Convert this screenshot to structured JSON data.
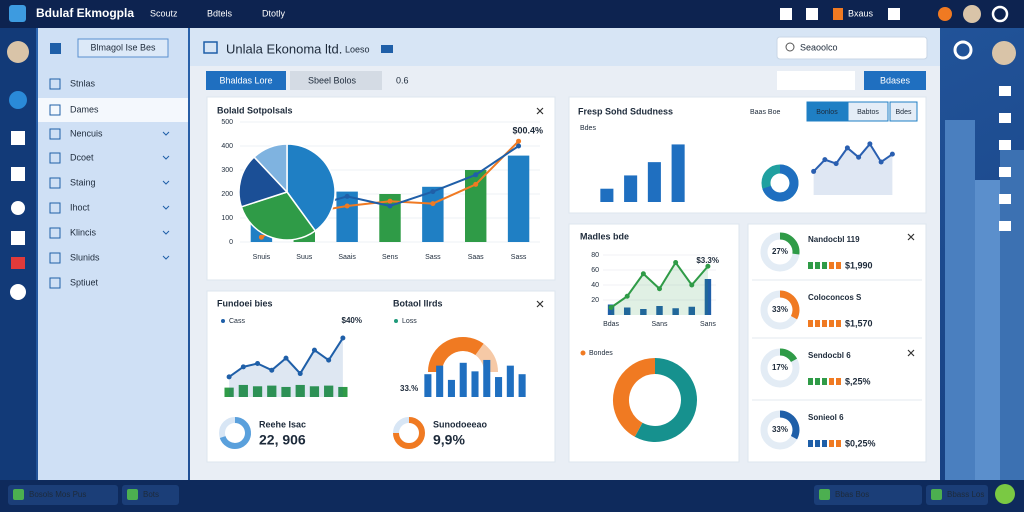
{
  "app": {
    "title": "Bdulaf Ekmogpla",
    "nav": [
      "Scoutz",
      "Bdtels",
      "Dtotly"
    ],
    "status": "Bxaus"
  },
  "sidebar": {
    "button": "Blmagol Ise Bes",
    "items": [
      "Stnlas",
      "Dames",
      "Nencuis",
      "Dcoet",
      "Staing",
      "Ihoct",
      "Klincis",
      "Slunids",
      "Sptiuet"
    ]
  },
  "header": {
    "title": "Unlala Ekonoma ltd.",
    "tag": "Loeso",
    "search": "Seaoolco",
    "primary": "Bhaldas Lore",
    "filter": "Sbeel Bolos",
    "count": "0.6",
    "action": "Bdases"
  },
  "chart_data": [
    {
      "type": "combo",
      "title": "Bolald Sotpolsals",
      "categories": [
        "Snuis",
        "Suus",
        "Saais",
        "Sens",
        "Sass",
        "Saas",
        "Sass"
      ],
      "ylim": [
        0,
        500
      ],
      "yticks": [
        0,
        100,
        200,
        300,
        400,
        500
      ],
      "bar_colors": [
        "#1f7fc4",
        "#2f9b47"
      ],
      "values": [
        140,
        180,
        210,
        200,
        230,
        300,
        360
      ],
      "lines": [
        {
          "color": "#f07a22",
          "values": [
            20,
            120,
            150,
            170,
            160,
            240,
            420
          ]
        },
        {
          "color": "#1f5fa8",
          "values": [
            50,
            140,
            190,
            150,
            210,
            280,
            400
          ]
        }
      ],
      "annotation": "$00.4%",
      "pie": {
        "colors": [
          "#1f7fc4",
          "#2f9b47",
          "#1b4f96",
          "#7fb3e0"
        ],
        "values": [
          40,
          30,
          18,
          12
        ]
      }
    },
    {
      "type": "overview",
      "title": "Fresp Sohd Sdudness",
      "caption": "Bdes",
      "subtitle": "Baas Boe",
      "tabs": [
        "Bonlos",
        "Babtos",
        "Bdes"
      ],
      "ylim": [
        0,
        70
      ],
      "values": [
        15,
        30,
        45,
        65
      ],
      "color": "#1f6fc0",
      "donut": {
        "value": 70,
        "colors": [
          "#1f6fc0",
          "#20a0a0"
        ]
      },
      "trend": {
        "color": "#2a5fb0",
        "values": [
          30,
          45,
          40,
          60,
          48,
          65,
          42,
          52
        ]
      }
    },
    {
      "type": "trend",
      "title": "Madles bde",
      "legend": "Bondes",
      "annotation": "$3.3%",
      "categories": [
        "Bdas",
        null,
        null,
        "Sans",
        null,
        null,
        "Sans"
      ],
      "ylim": [
        0,
        80
      ],
      "yticks": [
        20,
        40,
        60,
        80
      ],
      "line": {
        "color": "#2f9b47",
        "values": [
          10,
          25,
          55,
          35,
          70,
          40,
          65
        ]
      },
      "bars": {
        "color": "#1f5fa8",
        "values": [
          14,
          10,
          8,
          12,
          9,
          11,
          48
        ]
      },
      "donut": {
        "values": [
          58,
          42
        ],
        "colors": [
          "#16918e",
          "#f07a22"
        ]
      }
    },
    {
      "type": "area",
      "title": "Fundoei bies",
      "legend": "Cass",
      "annotation": "$40%",
      "ylim": [
        0,
        100
      ],
      "line": {
        "color": "#1f5fa8",
        "values": [
          30,
          45,
          50,
          40,
          58,
          35,
          70,
          55,
          88
        ]
      },
      "bars": {
        "color": "#2f9b47",
        "values": [
          14,
          18,
          16,
          17,
          15,
          18,
          16,
          17,
          15
        ]
      },
      "stat": {
        "label": "Reehe Isac",
        "value": "22, 906",
        "percent": 70,
        "color": "#5aa0dc"
      }
    },
    {
      "type": "semi",
      "title": "Botaol llrds",
      "legend": "Loss",
      "annotation": "33.%",
      "ylim": [
        0,
        100
      ],
      "values": [
        40,
        55,
        30,
        60,
        45,
        65,
        35,
        55,
        40
      ],
      "color": "#1f6fc0",
      "gauge": {
        "value": 70,
        "color": "#f07a22"
      },
      "stat": {
        "label": "Sunodoeeao",
        "value": "9,9%",
        "percent": 75,
        "color": "#f07a22"
      }
    }
  ],
  "kpis": [
    {
      "name": "Nandocbl 119",
      "percent": 27,
      "percent_label": "27%",
      "amount": "$1,990",
      "color": "#2f9b47"
    },
    {
      "name": "Coloconcos S",
      "percent": 33,
      "percent_label": "33%",
      "amount": "$1,570",
      "color": "#f07a22"
    },
    {
      "name": "Sendocbl 6",
      "percent": 17,
      "percent_label": "17%",
      "amount": "$,25%",
      "color": "#2f9b47"
    },
    {
      "name": "Sonieol 6",
      "percent": 33,
      "percent_label": "33%",
      "amount": "$0,25%",
      "color": "#1f5fa8"
    }
  ],
  "taskbar": [
    "Bosols Mos Pus",
    "Bots",
    "Bbas Bos",
    "Bbass Los"
  ]
}
